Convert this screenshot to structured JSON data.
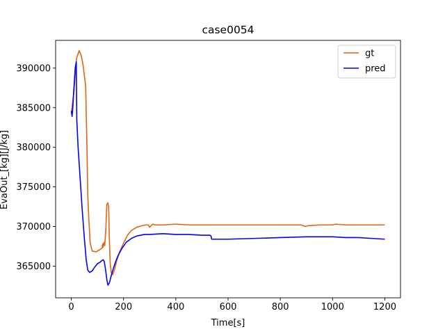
{
  "chart_data": {
    "type": "line",
    "title": "case0054",
    "xlabel": "Time[s]",
    "ylabel": "EvaOut_[kg][J/kg]",
    "xlim": [
      -60,
      1260
    ],
    "ylim": [
      361000,
      393500
    ],
    "xticks": [
      0,
      200,
      400,
      600,
      800,
      1000,
      1200
    ],
    "yticks": [
      365000,
      370000,
      375000,
      380000,
      385000,
      390000
    ],
    "grid": false,
    "legend_position": "upper right",
    "series": [
      {
        "name": "gt",
        "color": "#e0650f",
        "points": [
          [
            0,
            384300
          ],
          [
            10,
            387000
          ],
          [
            20,
            391200
          ],
          [
            30,
            392200
          ],
          [
            38,
            391600
          ],
          [
            45,
            390400
          ],
          [
            55,
            387700
          ],
          [
            60,
            380000
          ],
          [
            63,
            374000
          ],
          [
            67,
            371000
          ],
          [
            72,
            368000
          ],
          [
            80,
            366900
          ],
          [
            95,
            366800
          ],
          [
            110,
            367100
          ],
          [
            118,
            367300
          ],
          [
            120,
            367800
          ],
          [
            122,
            367400
          ],
          [
            125,
            368000
          ],
          [
            128,
            367600
          ],
          [
            132,
            369500
          ],
          [
            136,
            372800
          ],
          [
            140,
            373000
          ],
          [
            143,
            372400
          ],
          [
            146,
            368000
          ],
          [
            149,
            365300
          ],
          [
            153,
            364200
          ],
          [
            158,
            363900
          ],
          [
            165,
            364500
          ],
          [
            175,
            365800
          ],
          [
            185,
            366800
          ],
          [
            200,
            367900
          ],
          [
            215,
            368900
          ],
          [
            230,
            369500
          ],
          [
            250,
            369900
          ],
          [
            270,
            370100
          ],
          [
            285,
            370200
          ],
          [
            295,
            370200
          ],
          [
            300,
            369900
          ],
          [
            305,
            370100
          ],
          [
            312,
            370300
          ],
          [
            320,
            370200
          ],
          [
            350,
            370200
          ],
          [
            400,
            370300
          ],
          [
            450,
            370200
          ],
          [
            500,
            370200
          ],
          [
            540,
            370200
          ],
          [
            600,
            370200
          ],
          [
            700,
            370200
          ],
          [
            800,
            370200
          ],
          [
            880,
            370200
          ],
          [
            895,
            370000
          ],
          [
            905,
            370100
          ],
          [
            950,
            370200
          ],
          [
            1000,
            370200
          ],
          [
            1010,
            370300
          ],
          [
            1050,
            370200
          ],
          [
            1100,
            370200
          ],
          [
            1150,
            370200
          ],
          [
            1200,
            370200
          ]
        ]
      },
      {
        "name": "pred",
        "color": "#0000ff",
        "points": [
          [
            0,
            384600
          ],
          [
            3,
            383900
          ],
          [
            5,
            384600
          ],
          [
            10,
            387500
          ],
          [
            15,
            390000
          ],
          [
            19,
            390800
          ],
          [
            21,
            383500
          ],
          [
            26,
            380000
          ],
          [
            33,
            376500
          ],
          [
            42,
            372000
          ],
          [
            50,
            368500
          ],
          [
            57,
            365800
          ],
          [
            63,
            364500
          ],
          [
            70,
            364200
          ],
          [
            80,
            364400
          ],
          [
            90,
            364900
          ],
          [
            100,
            365300
          ],
          [
            110,
            365500
          ],
          [
            117,
            365700
          ],
          [
            122,
            365800
          ],
          [
            126,
            365600
          ],
          [
            131,
            364600
          ],
          [
            136,
            363300
          ],
          [
            140,
            362600
          ],
          [
            146,
            362900
          ],
          [
            152,
            363700
          ],
          [
            160,
            364600
          ],
          [
            170,
            365600
          ],
          [
            180,
            366400
          ],
          [
            195,
            367300
          ],
          [
            210,
            368000
          ],
          [
            230,
            368500
          ],
          [
            250,
            368800
          ],
          [
            280,
            369000
          ],
          [
            300,
            369000
          ],
          [
            350,
            369100
          ],
          [
            400,
            369000
          ],
          [
            450,
            369000
          ],
          [
            500,
            368900
          ],
          [
            530,
            368900
          ],
          [
            535,
            368800
          ],
          [
            537,
            368400
          ],
          [
            550,
            368400
          ],
          [
            600,
            368400
          ],
          [
            700,
            368500
          ],
          [
            800,
            368600
          ],
          [
            900,
            368700
          ],
          [
            1000,
            368700
          ],
          [
            1050,
            368600
          ],
          [
            1100,
            368600
          ],
          [
            1150,
            368500
          ],
          [
            1200,
            368400
          ]
        ]
      }
    ]
  }
}
